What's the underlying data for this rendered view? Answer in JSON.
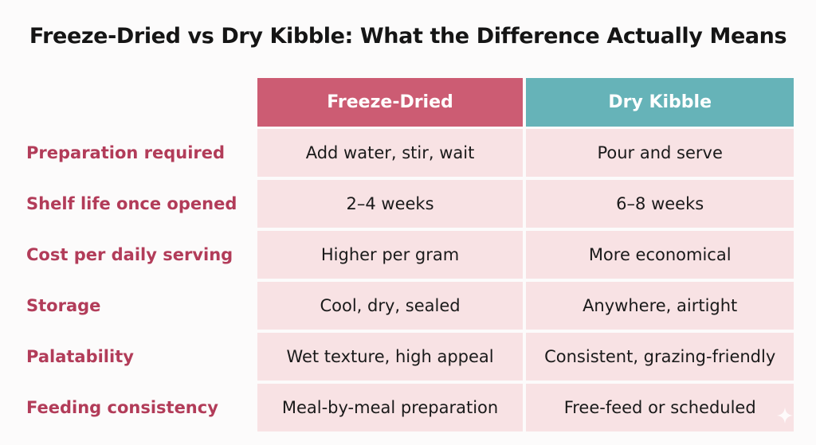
{
  "title": "Freeze-Dried vs Dry Kibble: What the Difference Actually Means",
  "columns": {
    "freeze_dried": "Freeze-Dried",
    "dry_kibble": "Dry Kibble"
  },
  "colors": {
    "label_text": "#b23c59",
    "freeze_dried_header": "#cc5c73",
    "dry_kibble_header": "#66b3b8",
    "cell_background": "#f8e2e4"
  },
  "rows": [
    {
      "label": "Preparation required",
      "freeze_dried": "Add water, stir, wait",
      "dry_kibble": "Pour and serve"
    },
    {
      "label": "Shelf life once opened",
      "freeze_dried": "2–4 weeks",
      "dry_kibble": "6–8 weeks"
    },
    {
      "label": "Cost per daily serving",
      "freeze_dried": "Higher per gram",
      "dry_kibble": "More economical"
    },
    {
      "label": "Storage",
      "freeze_dried": "Cool, dry, sealed",
      "dry_kibble": "Anywhere, airtight"
    },
    {
      "label": "Palatability",
      "freeze_dried": "Wet texture, high appeal",
      "dry_kibble": "Consistent, grazing-friendly"
    },
    {
      "label": "Feeding consistency",
      "freeze_dried": "Meal-by-meal preparation",
      "dry_kibble": "Free-feed or scheduled"
    }
  ],
  "watermark_icon": "sparkle-icon"
}
